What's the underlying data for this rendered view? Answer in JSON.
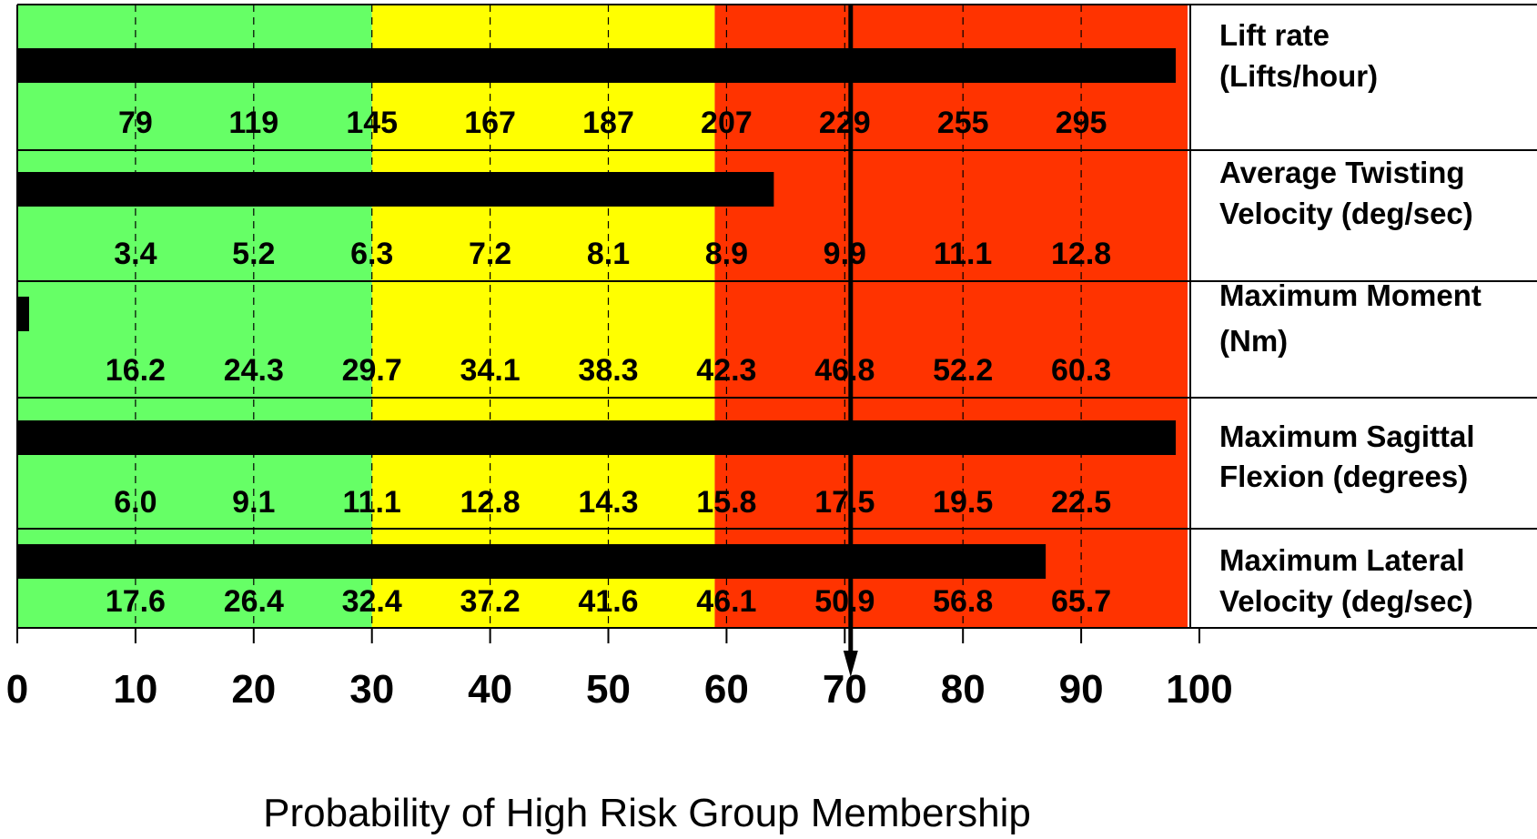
{
  "chart_data": {
    "type": "bar",
    "orientation": "horizontal",
    "title": "",
    "xlabel": "Probability of High Risk Group Membership",
    "ylabel": "",
    "xlim": [
      0,
      100
    ],
    "x_ticks": [
      "0",
      "10",
      "20",
      "30",
      "40",
      "50",
      "60",
      "70",
      "80",
      "90",
      "100"
    ],
    "grid": true,
    "zones": [
      {
        "from": 0,
        "to": 30,
        "color": "#66ff66"
      },
      {
        "from": 30,
        "to": 59,
        "color": "#ffff00"
      },
      {
        "from": 59,
        "to": 99,
        "color": "#ff3300"
      }
    ],
    "marker": {
      "value": 70.5,
      "label": "70"
    },
    "categories": [
      "Lift rate (Lifts/hour)",
      "Average Twisting Velocity (deg/sec)",
      "Maximum Moment (Nm)",
      "Maximum Sagittal Flexion (degrees)",
      "Maximum Lateral Velocity (deg/sec)"
    ],
    "values": [
      98,
      64,
      1,
      98,
      87
    ],
    "rows": [
      {
        "label_lines": [
          "Lift rate",
          "(Lifts/hour)"
        ],
        "value": 98,
        "scale": [
          "79",
          "119",
          "145",
          "167",
          "187",
          "207",
          "229",
          "255",
          "295"
        ]
      },
      {
        "label_lines": [
          "Average Twisting",
          "Velocity (deg/sec)"
        ],
        "value": 64,
        "scale": [
          "3.4",
          "5.2",
          "6.3",
          "7.2",
          "8.1",
          "8.9",
          "9.9",
          "11.1",
          "12.8"
        ]
      },
      {
        "label_lines": [
          "Maximum Moment",
          "(Nm)"
        ],
        "value": 1,
        "scale": [
          "16.2",
          "24.3",
          "29.7",
          "34.1",
          "38.3",
          "42.3",
          "46.8",
          "52.2",
          "60.3"
        ]
      },
      {
        "label_lines": [
          "Maximum Sagittal",
          "Flexion (degrees)"
        ],
        "value": 98,
        "scale": [
          "6.0",
          "9.1",
          "11.1",
          "12.8",
          "14.3",
          "15.8",
          "17.5",
          "19.5",
          "22.5"
        ]
      },
      {
        "label_lines": [
          "Maximum Lateral",
          "Velocity (deg/sec)"
        ],
        "value": 87,
        "scale": [
          "17.6",
          "26.4",
          "32.4",
          "37.2",
          "41.6",
          "46.1",
          "50.9",
          "56.8",
          "65.7"
        ]
      }
    ],
    "colors": {
      "bar": "#000000",
      "grid": "#000000",
      "border": "#000000"
    }
  }
}
